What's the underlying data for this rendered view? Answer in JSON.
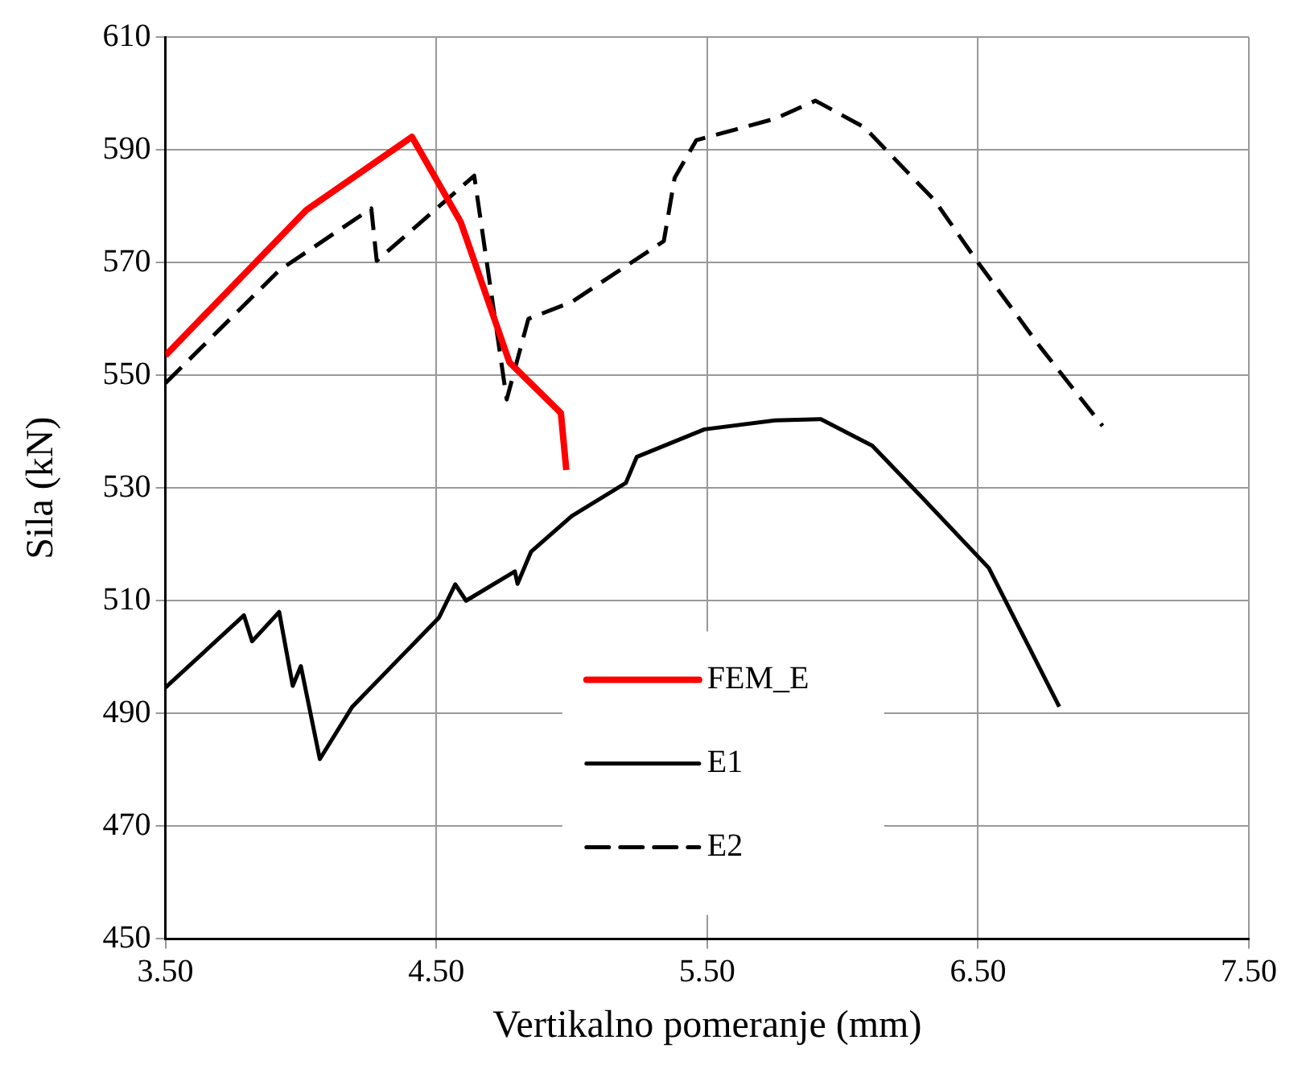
{
  "chart_data": {
    "type": "line",
    "xlabel": "Vertikalno pomeranje (mm)",
    "ylabel": "Sila (kN)",
    "xlim": [
      3.5,
      7.5
    ],
    "xticks": [
      {
        "value": 3.5,
        "label": "3.50"
      },
      {
        "value": 4.5,
        "label": "4.50"
      },
      {
        "value": 5.5,
        "label": "5.50"
      },
      {
        "value": 6.5,
        "label": "6.50"
      },
      {
        "value": 7.5,
        "label": "7.50"
      }
    ],
    "ylim": [
      450,
      610
    ],
    "yticks": [
      450,
      470,
      490,
      510,
      530,
      550,
      570,
      590,
      610
    ],
    "grid": true,
    "legend": "bottom",
    "marker": "none",
    "series": [
      {
        "name": "FEM_E",
        "color": "#ff0000",
        "line_style": "solid",
        "x": [
          3.5,
          4.02,
          4.41,
          4.59,
          4.77,
          4.96,
          4.98
        ],
        "values": [
          553.5,
          579.3,
          592.3,
          577.2,
          552.3,
          543.3,
          533.2
        ]
      },
      {
        "name": "E1",
        "color": "#000000",
        "line_style": "solid",
        "x": [
          3.5,
          3.79,
          3.82,
          3.92,
          3.97,
          4.0,
          4.07,
          4.19,
          4.51,
          4.57,
          4.61,
          4.79,
          4.8,
          4.85,
          5.0,
          5.2,
          5.24,
          5.49,
          5.75,
          5.92,
          6.11,
          6.29,
          6.54,
          6.8
        ],
        "values": [
          494.6,
          507.4,
          502.8,
          508,
          494.9,
          498.4,
          481.9,
          491.2,
          507,
          512.9,
          510,
          515.2,
          513,
          518.7,
          525,
          530.9,
          535.5,
          540.4,
          542,
          542.2,
          537.5,
          528.5,
          515.8,
          491.2
        ]
      },
      {
        "name": "E2",
        "color": "#000000",
        "line_style": "dashed",
        "x": [
          3.5,
          3.92,
          4.26,
          4.28,
          4.64,
          4.76,
          4.84,
          5.0,
          5.34,
          5.38,
          5.46,
          5.75,
          5.9,
          6.08,
          6.34,
          6.5,
          6.73,
          6.96
        ],
        "values": [
          548.6,
          568.6,
          579.6,
          570.3,
          585.4,
          545.7,
          560,
          563,
          573.8,
          585,
          591.7,
          595.5,
          598.7,
          594,
          581,
          570,
          555,
          541
        ]
      }
    ]
  }
}
